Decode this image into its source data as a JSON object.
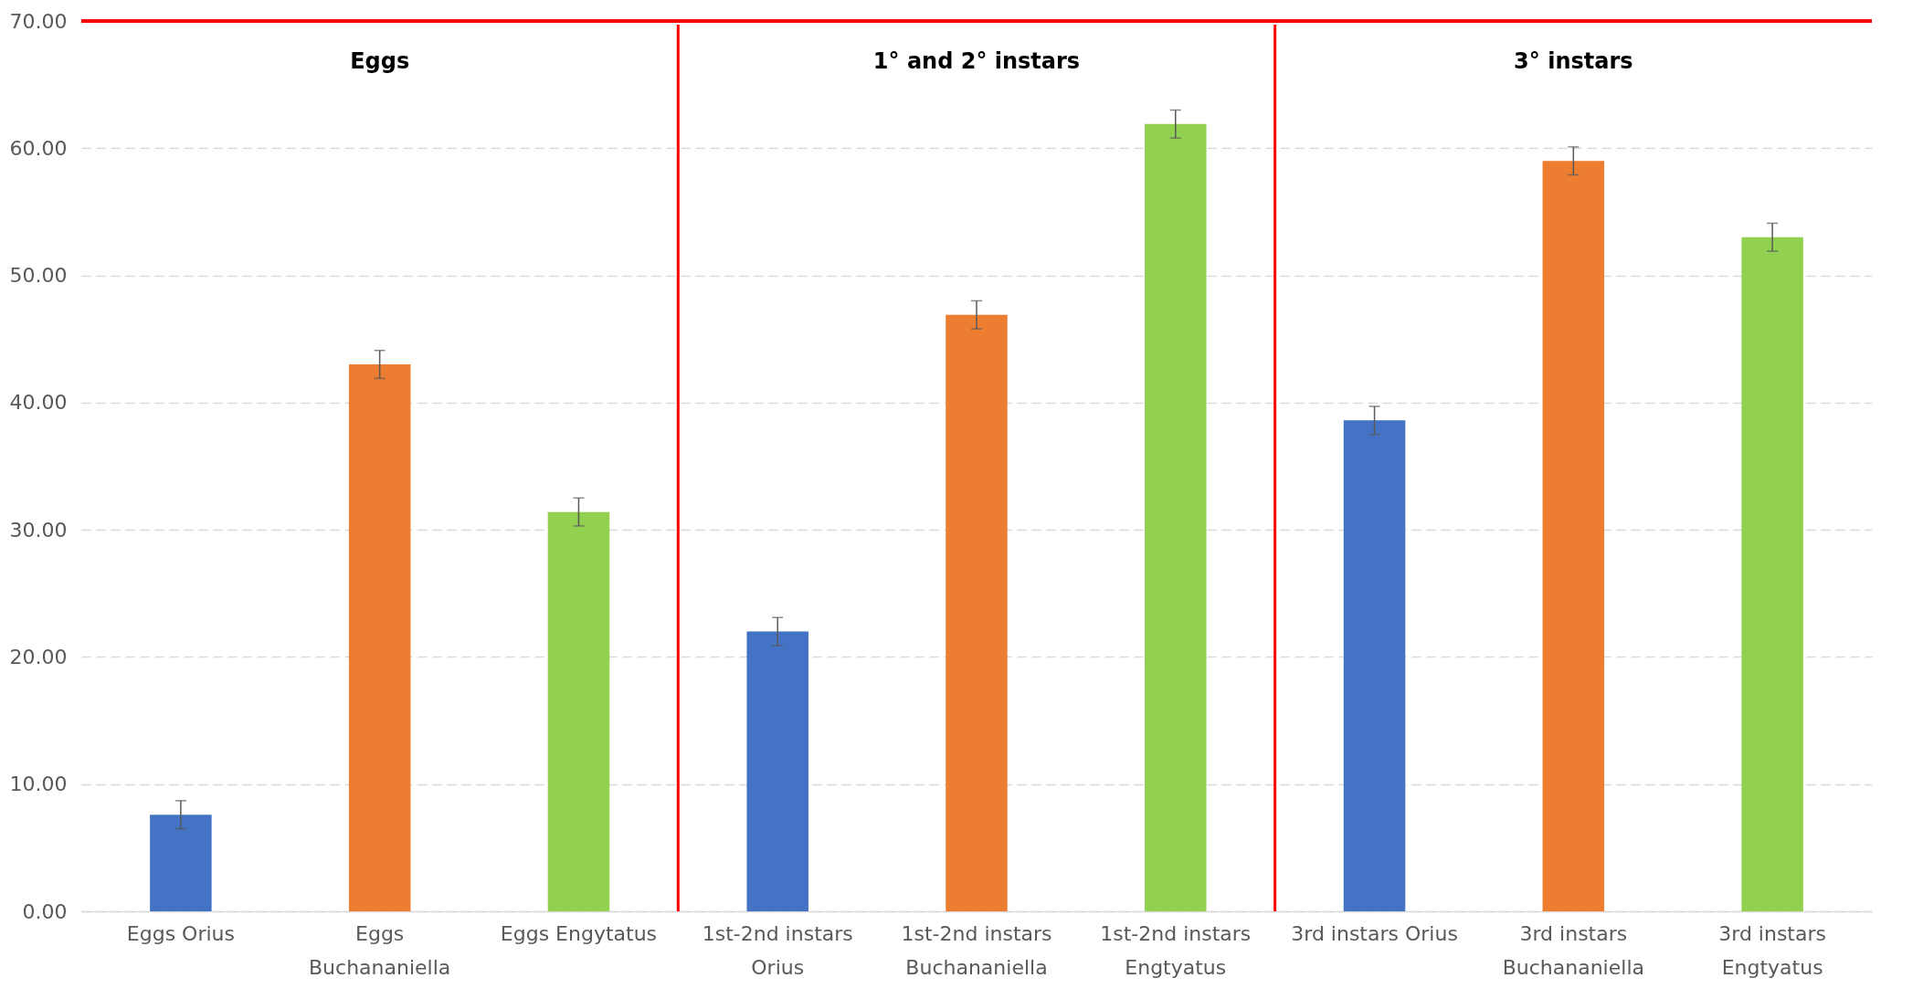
{
  "chart_data": {
    "type": "bar",
    "categories": [
      "Eggs Orius",
      "Eggs Buchananiella",
      "Eggs Engytatus",
      "1st-2nd instars Orius",
      "1st-2nd instars Buchananiella",
      "1st-2nd instars Engtyatus",
      "3rd instars Orius",
      "3rd instars Buchananiella",
      "3rd instars Engtyatus"
    ],
    "values": [
      7.6,
      43.0,
      31.4,
      22.0,
      46.9,
      61.9,
      38.6,
      59.0,
      53.0
    ],
    "errors": [
      1.1,
      1.1,
      1.1,
      1.1,
      1.1,
      1.1,
      1.1,
      1.1,
      1.1
    ],
    "colors": [
      "#4472c4",
      "#ed7d31",
      "#92d050",
      "#4472c4",
      "#ed7d31",
      "#92d050",
      "#4472c4",
      "#ed7d31",
      "#92d050"
    ],
    "ylim": [
      0,
      70
    ],
    "yticks": [
      {
        "value": 0,
        "label": "0.00"
      },
      {
        "value": 10,
        "label": "10.00"
      },
      {
        "value": 20,
        "label": "20.00"
      },
      {
        "value": 30,
        "label": "30.00"
      },
      {
        "value": 40,
        "label": "40.00"
      },
      {
        "value": 50,
        "label": "50.00"
      },
      {
        "value": 60,
        "label": "60.00"
      },
      {
        "value": 70,
        "label": "70.00"
      }
    ],
    "grid": "y",
    "ref_lines": [
      {
        "axis": "y",
        "value": 70,
        "color": "#ff0000"
      }
    ],
    "annotations": [
      "Eggs",
      "1° and 2° instars",
      "3° instars"
    ]
  }
}
